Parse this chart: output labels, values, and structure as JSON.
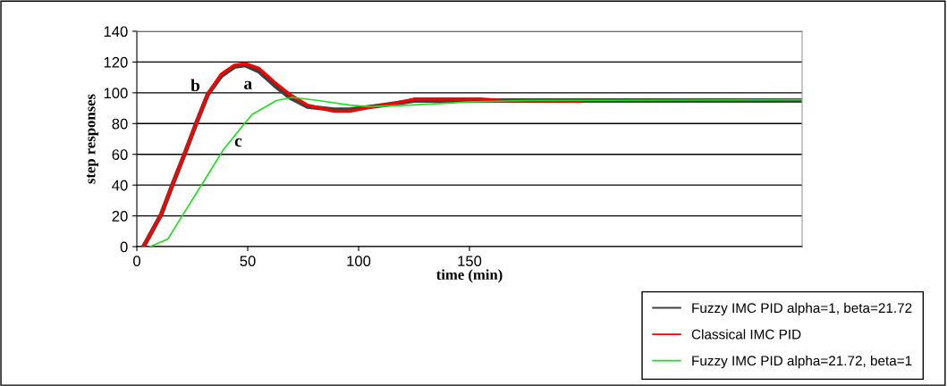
{
  "chart_data": {
    "type": "line",
    "xlabel": "time (min)",
    "ylabel": "step responses",
    "xlim": [
      0,
      300
    ],
    "xticks": [
      0,
      50,
      100,
      150
    ],
    "ylim": [
      0,
      140
    ],
    "yticks": [
      0,
      20,
      40,
      60,
      80,
      100,
      120,
      140
    ],
    "grid": "y",
    "legend": "bottom right",
    "marker": "none",
    "line_style": "solid",
    "series": [
      {
        "name": "Fuzzy IMC PID alpha=1, beta=21.72",
        "color": "#404040",
        "x": [
          3,
          11,
          16,
          22,
          27,
          32,
          38,
          44,
          49,
          55,
          62,
          69,
          77,
          89,
          96,
          106,
          116,
          125,
          155,
          165,
          200,
          300
        ],
        "values": [
          0,
          21,
          40,
          62,
          81,
          99,
          111,
          117,
          118,
          114,
          105,
          97,
          91,
          89,
          89,
          91,
          93,
          95,
          95,
          95,
          95,
          95
        ]
      },
      {
        "name": "Classical IMC PID",
        "color": "#ff0000",
        "x": [
          3,
          11,
          16,
          22,
          27,
          32,
          38,
          44,
          49,
          55,
          62,
          69,
          77,
          89,
          96,
          106,
          116,
          125,
          155,
          165,
          200
        ],
        "values": [
          0,
          21,
          40,
          62,
          81,
          99,
          112,
          118,
          119,
          116,
          107,
          99,
          92,
          88,
          88,
          91,
          93,
          96,
          96,
          95,
          94.5
        ]
      },
      {
        "name": "Fuzzy IMC PID alpha=21.72, beta=1",
        "color": "#22dd22",
        "x": [
          6,
          14,
          20,
          30,
          39,
          48,
          52,
          63,
          70,
          82,
          96,
          105,
          123,
          149,
          176,
          300
        ],
        "values": [
          0,
          5,
          19,
          42,
          63,
          79,
          86,
          95,
          97,
          95,
          92,
          91,
          92,
          94,
          95,
          95.5
        ]
      }
    ],
    "annotations": [
      "a",
      "b",
      "c"
    ]
  }
}
